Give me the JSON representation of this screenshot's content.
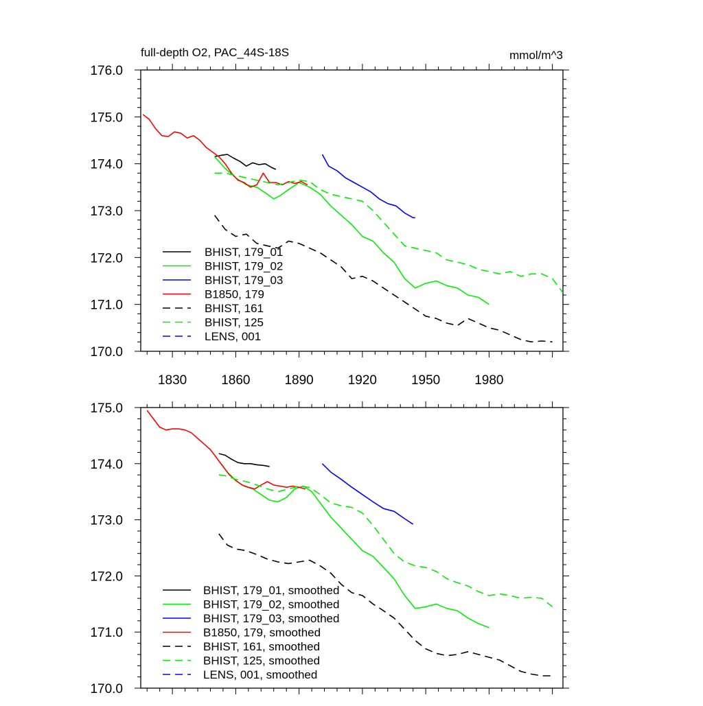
{
  "chart_data": [
    {
      "type": "line",
      "title": "full-depth O2, PAC_44S-18S",
      "units": "mmol/m^3",
      "xlim": [
        1815,
        2015
      ],
      "ylim": [
        170.0,
        176.0
      ],
      "x_ticks": [
        1830,
        1860,
        1890,
        1920,
        1950,
        1980
      ],
      "y_ticks": [
        "170.0",
        "171.0",
        "172.0",
        "173.0",
        "174.0",
        "175.0",
        "176.0"
      ],
      "x_tick_labels": [
        "1830",
        "1860",
        "1890",
        "1920",
        "1950",
        "1980"
      ],
      "series": [
        {
          "name": "BHIST, 179_01",
          "color": "#000000",
          "dash": "solid",
          "x": [
            1850,
            1853,
            1856,
            1859,
            1862,
            1865,
            1868,
            1871,
            1874,
            1877,
            1879
          ],
          "y": [
            174.15,
            174.18,
            174.2,
            174.12,
            174.05,
            173.95,
            174.02,
            173.98,
            174.0,
            173.92,
            173.88
          ]
        },
        {
          "name": "BHIST, 179_02",
          "color": "#00ee00",
          "dash": "solid",
          "x": [
            1850,
            1855,
            1860,
            1865,
            1870,
            1875,
            1878,
            1881,
            1885,
            1890,
            1895,
            1900,
            1905,
            1910,
            1915,
            1920,
            1925,
            1930,
            1935,
            1940,
            1945,
            1950,
            1955,
            1960,
            1965,
            1970,
            1975,
            1980
          ],
          "y": [
            174.15,
            173.9,
            173.7,
            173.55,
            173.5,
            173.35,
            173.25,
            173.32,
            173.45,
            173.6,
            173.5,
            173.35,
            173.1,
            172.9,
            172.7,
            172.45,
            172.35,
            172.1,
            171.9,
            171.55,
            171.35,
            171.45,
            171.5,
            171.4,
            171.35,
            171.2,
            171.15,
            171.0
          ]
        },
        {
          "name": "BHIST, 179_03",
          "color": "#0000ff",
          "dash": "solid",
          "x": [
            1901,
            1904,
            1908,
            1912,
            1916,
            1920,
            1924,
            1928,
            1932,
            1936,
            1940,
            1944,
            1945
          ],
          "y": [
            174.2,
            173.95,
            173.85,
            173.7,
            173.6,
            173.5,
            173.4,
            173.25,
            173.15,
            173.1,
            172.95,
            172.85,
            172.85
          ]
        },
        {
          "name": "B1850, 179",
          "color": "#ff0000",
          "dash": "solid",
          "x": [
            1816,
            1819,
            1822,
            1825,
            1828,
            1831,
            1834,
            1837,
            1840,
            1843,
            1846,
            1849,
            1852,
            1855,
            1858,
            1861,
            1864,
            1867,
            1870,
            1873,
            1876,
            1879,
            1882,
            1885,
            1888,
            1891,
            1894
          ],
          "y": [
            175.05,
            174.95,
            174.75,
            174.6,
            174.58,
            174.68,
            174.65,
            174.55,
            174.6,
            174.5,
            174.35,
            174.25,
            174.15,
            174.0,
            173.8,
            173.65,
            173.6,
            173.5,
            173.55,
            173.8,
            173.6,
            173.6,
            173.55,
            173.62,
            173.58,
            173.62,
            173.55
          ]
        },
        {
          "name": "BHIST, 161",
          "color": "#000000",
          "dash": "dashed",
          "x": [
            1850,
            1855,
            1860,
            1865,
            1870,
            1875,
            1880,
            1885,
            1890,
            1895,
            1900,
            1905,
            1910,
            1915,
            1920,
            1925,
            1930,
            1935,
            1940,
            1945,
            1950,
            1955,
            1960,
            1965,
            1970,
            1975,
            1980,
            1985,
            1990,
            1995,
            2000,
            2005,
            2010
          ],
          "y": [
            172.9,
            172.6,
            172.45,
            172.5,
            172.3,
            172.25,
            172.2,
            172.35,
            172.3,
            172.2,
            172.1,
            171.95,
            171.8,
            171.55,
            171.6,
            171.5,
            171.35,
            171.2,
            171.05,
            170.9,
            170.75,
            170.7,
            170.6,
            170.55,
            170.7,
            170.6,
            170.5,
            170.45,
            170.35,
            170.25,
            170.2,
            170.22,
            170.2
          ]
        },
        {
          "name": "BHIST, 125",
          "color": "#00ee00",
          "dash": "dashed",
          "x": [
            1850,
            1855,
            1860,
            1865,
            1870,
            1875,
            1880,
            1885,
            1890,
            1895,
            1900,
            1905,
            1910,
            1915,
            1920,
            1925,
            1930,
            1935,
            1940,
            1945,
            1950,
            1955,
            1960,
            1965,
            1970,
            1975,
            1980,
            1985,
            1990,
            1995,
            2000,
            2005,
            2010,
            2015
          ],
          "y": [
            173.8,
            173.8,
            173.75,
            173.7,
            173.65,
            173.6,
            173.55,
            173.6,
            173.65,
            173.62,
            173.45,
            173.35,
            173.3,
            173.25,
            173.2,
            173.0,
            172.75,
            172.5,
            172.25,
            172.2,
            172.15,
            172.1,
            171.95,
            171.9,
            171.85,
            171.75,
            171.7,
            171.65,
            171.7,
            171.6,
            171.65,
            171.65,
            171.55,
            171.25
          ]
        },
        {
          "name": "LENS, 001",
          "color": "#0000ff",
          "dash": "dashed",
          "x": [],
          "y": []
        }
      ]
    },
    {
      "type": "line",
      "title": "",
      "xlim": [
        1815,
        2015
      ],
      "ylim": [
        170.0,
        175.0
      ],
      "x_ticks": [
        1830,
        1860,
        1890,
        1920,
        1950,
        1980
      ],
      "y_ticks": [
        "170.0",
        "171.0",
        "172.0",
        "173.0",
        "174.0",
        "175.0"
      ],
      "series": [
        {
          "name": "BHIST, 179_01, smoothed",
          "color": "#000000",
          "dash": "solid",
          "x": [
            1852,
            1855,
            1858,
            1861,
            1864,
            1867,
            1870,
            1873,
            1876
          ],
          "y": [
            174.18,
            174.15,
            174.08,
            174.02,
            174.0,
            174.0,
            173.98,
            173.97,
            173.95
          ]
        },
        {
          "name": "BHIST, 179_02, smoothed",
          "color": "#00ee00",
          "dash": "solid",
          "x": [
            1852,
            1856,
            1860,
            1864,
            1868,
            1872,
            1876,
            1880,
            1884,
            1888,
            1892,
            1896,
            1900,
            1905,
            1910,
            1915,
            1920,
            1925,
            1930,
            1935,
            1940,
            1945,
            1950,
            1955,
            1960,
            1965,
            1970,
            1975,
            1980
          ],
          "y": [
            174.05,
            173.85,
            173.7,
            173.6,
            173.55,
            173.45,
            173.35,
            173.32,
            173.4,
            173.55,
            173.6,
            173.5,
            173.3,
            173.05,
            172.85,
            172.65,
            172.45,
            172.35,
            172.15,
            171.95,
            171.65,
            171.42,
            171.45,
            171.5,
            171.42,
            171.38,
            171.25,
            171.15,
            171.08
          ]
        },
        {
          "name": "BHIST, 179_03, smoothed",
          "color": "#0000ff",
          "dash": "solid",
          "x": [
            1901,
            1905,
            1910,
            1915,
            1920,
            1925,
            1930,
            1935,
            1940,
            1944
          ],
          "y": [
            174.0,
            173.85,
            173.72,
            173.58,
            173.45,
            173.32,
            173.2,
            173.15,
            173.02,
            172.92
          ]
        },
        {
          "name": "B1850, 179, smoothed",
          "color": "#ff0000",
          "dash": "solid",
          "x": [
            1818,
            1821,
            1824,
            1827,
            1830,
            1833,
            1836,
            1839,
            1842,
            1845,
            1848,
            1851,
            1854,
            1857,
            1860,
            1863,
            1866,
            1869,
            1872,
            1875,
            1878,
            1881,
            1884,
            1887,
            1890,
            1893
          ],
          "y": [
            174.95,
            174.8,
            174.65,
            174.6,
            174.62,
            174.62,
            174.6,
            174.55,
            174.45,
            174.35,
            174.25,
            174.1,
            173.95,
            173.8,
            173.7,
            173.62,
            173.58,
            173.55,
            173.62,
            173.68,
            173.62,
            173.6,
            173.58,
            173.6,
            173.58,
            173.55
          ]
        },
        {
          "name": "BHIST, 161, smoothed",
          "color": "#000000",
          "dash": "dashed",
          "x": [
            1852,
            1856,
            1860,
            1865,
            1870,
            1875,
            1880,
            1885,
            1890,
            1895,
            1900,
            1905,
            1910,
            1915,
            1920,
            1925,
            1930,
            1935,
            1940,
            1945,
            1950,
            1955,
            1960,
            1965,
            1970,
            1975,
            1980,
            1985,
            1990,
            1995,
            2000,
            2005,
            2010
          ],
          "y": [
            172.75,
            172.55,
            172.48,
            172.45,
            172.38,
            172.3,
            172.25,
            172.22,
            172.25,
            172.28,
            172.18,
            172.05,
            171.85,
            171.7,
            171.65,
            171.5,
            171.38,
            171.25,
            171.05,
            170.85,
            170.7,
            170.62,
            170.58,
            170.6,
            170.65,
            170.6,
            170.55,
            170.5,
            170.4,
            170.3,
            170.25,
            170.22,
            170.22
          ]
        },
        {
          "name": "BHIST, 125, smoothed",
          "color": "#00ee00",
          "dash": "dashed",
          "x": [
            1852,
            1856,
            1860,
            1865,
            1870,
            1875,
            1880,
            1885,
            1890,
            1895,
            1900,
            1905,
            1910,
            1915,
            1920,
            1925,
            1930,
            1935,
            1940,
            1945,
            1950,
            1955,
            1960,
            1965,
            1970,
            1975,
            1980,
            1985,
            1990,
            1995,
            2000,
            2005,
            2010
          ],
          "y": [
            173.8,
            173.78,
            173.72,
            173.68,
            173.62,
            173.55,
            173.5,
            173.55,
            173.6,
            173.58,
            173.45,
            173.3,
            173.25,
            173.22,
            173.12,
            172.9,
            172.65,
            172.4,
            172.25,
            172.18,
            172.15,
            172.08,
            171.95,
            171.88,
            171.82,
            171.72,
            171.65,
            171.68,
            171.65,
            171.6,
            171.62,
            171.6,
            171.45
          ]
        },
        {
          "name": "LENS, 001, smoothed",
          "color": "#0000ff",
          "dash": "dashed",
          "x": [],
          "y": []
        }
      ]
    }
  ]
}
